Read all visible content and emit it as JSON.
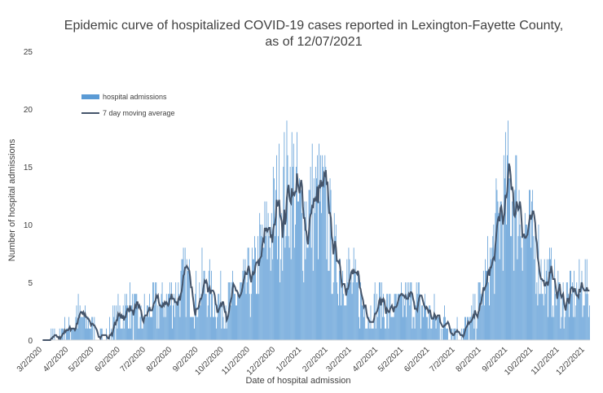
{
  "chart_data": {
    "type": "bar",
    "title_lines": [
      "Epidemic curve of hospitalized COVID-19 cases reported in Lexington-Fayette County,",
      "as of 12/07/2021"
    ],
    "xlabel": "Date of hospital admission",
    "ylabel": "Number of hospital admissions",
    "ylim": [
      0,
      25
    ],
    "y_ticks": [
      "0",
      "5",
      "10",
      "15",
      "20",
      "25"
    ],
    "x_ticks": [
      "3/2/2020",
      "4/2/2020",
      "5/2/2020",
      "6/2/2020",
      "7/2/2020",
      "8/2/2020",
      "9/2/2020",
      "10/2/2020",
      "11/2/2020",
      "12/2/2020",
      "1/2/2021",
      "2/2/2021",
      "3/2/2021",
      "4/2/2021",
      "5/2/2021",
      "6/2/2021",
      "7/2/2021",
      "8/2/2021",
      "9/2/2021",
      "10/2/2021",
      "11/2/2021",
      "12/2/2021"
    ],
    "x_start": "2020-03-02",
    "x_end": "2021-12-07",
    "grid": false,
    "legend_position": "top-left",
    "series": [
      {
        "name": "hospital admissions",
        "kind": "bar",
        "color": "#5b9bd5"
      },
      {
        "name": "7 day moving average",
        "kind": "line",
        "color": "#44546a"
      }
    ],
    "trend_anchors": [
      [
        "2020-03-02",
        0.0
      ],
      [
        "2020-03-15",
        0.2
      ],
      [
        "2020-04-01",
        1.0
      ],
      [
        "2020-04-12",
        2.2
      ],
      [
        "2020-04-25",
        1.5
      ],
      [
        "2020-05-05",
        0.4
      ],
      [
        "2020-05-18",
        0.6
      ],
      [
        "2020-06-01",
        2.2
      ],
      [
        "2020-06-12",
        2.8
      ],
      [
        "2020-06-25",
        1.6
      ],
      [
        "2020-07-08",
        2.9
      ],
      [
        "2020-07-20",
        2.8
      ],
      [
        "2020-08-05",
        4.0
      ],
      [
        "2020-08-18",
        5.2
      ],
      [
        "2020-08-28",
        3.8
      ],
      [
        "2020-09-08",
        4.8
      ],
      [
        "2020-09-20",
        3.8
      ],
      [
        "2020-10-02",
        3.0
      ],
      [
        "2020-10-15",
        3.5
      ],
      [
        "2020-10-28",
        4.5
      ],
      [
        "2020-11-08",
        6.0
      ],
      [
        "2020-11-20",
        8.5
      ],
      [
        "2020-12-02",
        11.0
      ],
      [
        "2020-12-12",
        12.5
      ],
      [
        "2020-12-22",
        13.5
      ],
      [
        "2021-01-02",
        10.0
      ],
      [
        "2021-01-12",
        11.5
      ],
      [
        "2021-01-22",
        12.0
      ],
      [
        "2021-02-01",
        10.5
      ],
      [
        "2021-02-10",
        6.5
      ],
      [
        "2021-02-22",
        6.0
      ],
      [
        "2021-03-05",
        4.5
      ],
      [
        "2021-03-20",
        2.5
      ],
      [
        "2021-04-02",
        3.2
      ],
      [
        "2021-04-15",
        2.5
      ],
      [
        "2021-04-25",
        2.8
      ],
      [
        "2021-05-05",
        3.6
      ],
      [
        "2021-05-18",
        3.0
      ],
      [
        "2021-06-02",
        2.2
      ],
      [
        "2021-06-15",
        1.5
      ],
      [
        "2021-07-01",
        1.0
      ],
      [
        "2021-07-15",
        1.2
      ],
      [
        "2021-07-25",
        2.0
      ],
      [
        "2021-08-02",
        4.0
      ],
      [
        "2021-08-12",
        6.5
      ],
      [
        "2021-08-22",
        10.0
      ],
      [
        "2021-09-02",
        13.0
      ],
      [
        "2021-09-12",
        12.0
      ],
      [
        "2021-09-22",
        10.0
      ],
      [
        "2021-10-02",
        8.0
      ],
      [
        "2021-10-12",
        6.0
      ],
      [
        "2021-10-25",
        4.5
      ],
      [
        "2021-11-05",
        3.5
      ],
      [
        "2021-11-20",
        3.8
      ],
      [
        "2021-12-01",
        5.0
      ],
      [
        "2021-12-07",
        3.5
      ]
    ]
  }
}
